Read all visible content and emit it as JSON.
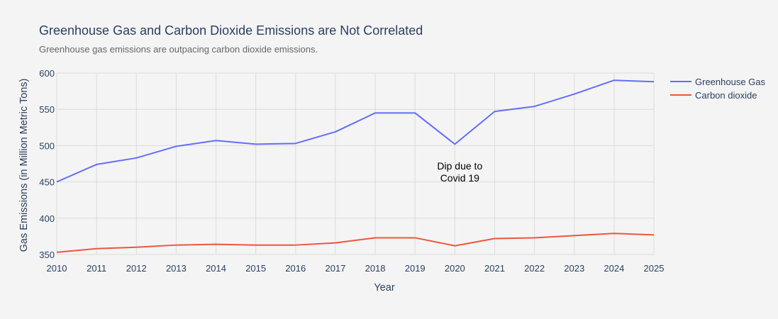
{
  "chart_data": {
    "type": "line",
    "title": "Greenhouse Gas and Carbon Dioxide Emissions are Not Correlated",
    "subtitle": "Greenhouse gas emissions are outpacing carbon dioxide emissions.",
    "xlabel": "Year",
    "ylabel": "Gas Emissions (in Million Metric Tons)",
    "x": [
      2010,
      2011,
      2012,
      2013,
      2014,
      2015,
      2016,
      2017,
      2018,
      2019,
      2020,
      2021,
      2022,
      2023,
      2024,
      2025
    ],
    "xlim": [
      2010,
      2025
    ],
    "ylim": [
      350,
      600
    ],
    "yticks": [
      350,
      400,
      450,
      500,
      550,
      600
    ],
    "grid": true,
    "legend_position": "top-right",
    "series": [
      {
        "name": "Greenhouse Gas",
        "color": "#636efa",
        "values": [
          450,
          474,
          483,
          499,
          507,
          502,
          503,
          519,
          545,
          545,
          502,
          547,
          554,
          571,
          590,
          588
        ]
      },
      {
        "name": "Carbon dioxide",
        "color": "#ef553b",
        "values": [
          353,
          358,
          360,
          363,
          364,
          363,
          363,
          366,
          373,
          373,
          362,
          372,
          373,
          376,
          379,
          377
        ]
      }
    ],
    "annotations": [
      {
        "x": 2020,
        "y": 466,
        "lines": [
          "Dip due to",
          "Covid 19"
        ]
      }
    ]
  }
}
